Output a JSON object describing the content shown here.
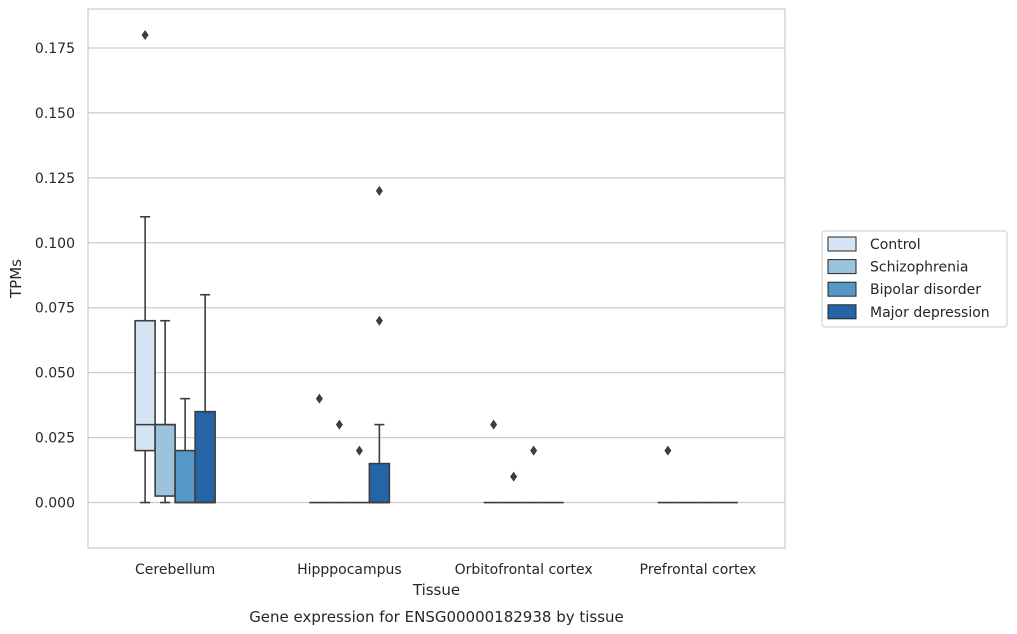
{
  "chart_data": {
    "type": "boxplot",
    "title": "",
    "xlabel": "Tissue",
    "ylabel": "TPMs",
    "caption": "Gene expression for ENSG00000182938 by tissue",
    "categories": [
      "Cerebellum",
      "Hipppocampus",
      "Orbitofrontal cortex",
      "Prefrontal cortex"
    ],
    "ylim": [
      -0.0175,
      0.19
    ],
    "yticks": [
      "0.000",
      "0.025",
      "0.050",
      "0.075",
      "0.100",
      "0.125",
      "0.150",
      "0.175"
    ],
    "ytick_values": [
      0,
      0.025,
      0.05,
      0.075,
      0.1,
      0.125,
      0.15,
      0.175
    ],
    "grid": "horizontal",
    "legend_position": "right",
    "series": [
      {
        "name": "Control",
        "color": "#d6e5f3",
        "boxes": [
          {
            "whislo": 0.0,
            "q1": 0.02,
            "med": 0.03,
            "q3": 0.07,
            "whishi": 0.11,
            "fliers": [
              0.18
            ]
          },
          {
            "whislo": 0.0,
            "q1": 0.0,
            "med": 0.0,
            "q3": 0.0,
            "whishi": 0.0,
            "fliers": [
              0.04
            ]
          },
          {
            "whislo": 0.0,
            "q1": 0.0,
            "med": 0.0,
            "q3": 0.0,
            "whishi": 0.0,
            "fliers": [
              0.03
            ]
          },
          {
            "whislo": 0.0,
            "q1": 0.0,
            "med": 0.0,
            "q3": 0.0,
            "whishi": 0.0,
            "fliers": [
              0.02
            ]
          }
        ]
      },
      {
        "name": "Schizophrenia",
        "color": "#9cc3dc",
        "boxes": [
          {
            "whislo": 0.0,
            "q1": 0.0025,
            "med": 0.03,
            "q3": 0.03,
            "whishi": 0.07,
            "fliers": []
          },
          {
            "whislo": 0.0,
            "q1": 0.0,
            "med": 0.0,
            "q3": 0.0,
            "whishi": 0.0,
            "fliers": [
              0.03
            ]
          },
          {
            "whislo": 0.0,
            "q1": 0.0,
            "med": 0.0,
            "q3": 0.0,
            "whishi": 0.0,
            "fliers": [
              0.01
            ]
          },
          {
            "whislo": 0.0,
            "q1": 0.0,
            "med": 0.0,
            "q3": 0.0,
            "whishi": 0.0,
            "fliers": []
          }
        ]
      },
      {
        "name": "Bipolar disorder",
        "color": "#5597c7",
        "boxes": [
          {
            "whislo": 0.0,
            "q1": 0.0,
            "med": 0.0,
            "q3": 0.02,
            "whishi": 0.04,
            "fliers": []
          },
          {
            "whislo": 0.0,
            "q1": 0.0,
            "med": 0.0,
            "q3": 0.0,
            "whishi": 0.0,
            "fliers": [
              0.02
            ]
          },
          {
            "whislo": 0.0,
            "q1": 0.0,
            "med": 0.0,
            "q3": 0.0,
            "whishi": 0.0,
            "fliers": [
              0.02
            ]
          },
          {
            "whislo": 0.0,
            "q1": 0.0,
            "med": 0.0,
            "q3": 0.0,
            "whishi": 0.0,
            "fliers": []
          }
        ]
      },
      {
        "name": "Major depression",
        "color": "#2565a6",
        "boxes": [
          {
            "whislo": 0.0,
            "q1": 0.0,
            "med": 0.0,
            "q3": 0.035,
            "whishi": 0.08,
            "fliers": []
          },
          {
            "whislo": 0.0,
            "q1": 0.0,
            "med": 0.0,
            "q3": 0.015,
            "whishi": 0.03,
            "fliers": [
              0.07,
              0.12
            ]
          },
          {
            "whislo": 0.0,
            "q1": 0.0,
            "med": 0.0,
            "q3": 0.0,
            "whishi": 0.0,
            "fliers": []
          },
          {
            "whislo": 0.0,
            "q1": 0.0,
            "med": 0.0,
            "q3": 0.0,
            "whishi": 0.0,
            "fliers": []
          }
        ]
      }
    ]
  }
}
